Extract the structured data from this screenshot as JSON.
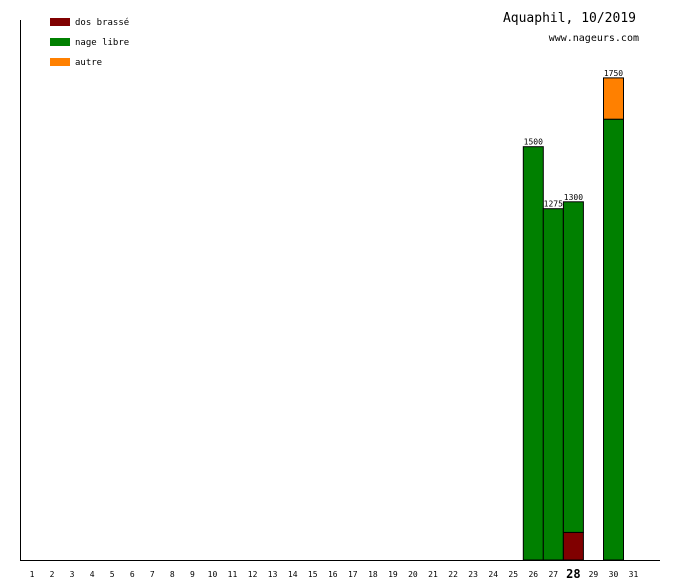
{
  "header": {
    "title": "Aquaphil, 10/2019",
    "url": "www.nageurs.com"
  },
  "legend": [
    {
      "label": "dos brassé",
      "color": "#800000"
    },
    {
      "label": "nage libre",
      "color": "#008000"
    },
    {
      "label": "autre",
      "color": "#ff8000"
    }
  ],
  "chart_data": {
    "type": "bar",
    "stacked": true,
    "categories": [
      "1",
      "2",
      "3",
      "4",
      "5",
      "6",
      "7",
      "8",
      "9",
      "10",
      "11",
      "12",
      "13",
      "14",
      "15",
      "16",
      "17",
      "18",
      "19",
      "20",
      "21",
      "22",
      "23",
      "24",
      "25",
      "26",
      "27",
      "28",
      "29",
      "30",
      "31"
    ],
    "highlight_category": "28",
    "series": [
      {
        "name": "dos brassé",
        "color": "#800000",
        "values": [
          0,
          0,
          0,
          0,
          0,
          0,
          0,
          0,
          0,
          0,
          0,
          0,
          0,
          0,
          0,
          0,
          0,
          0,
          0,
          0,
          0,
          0,
          0,
          0,
          0,
          0,
          0,
          100,
          0,
          0,
          0
        ]
      },
      {
        "name": "nage libre",
        "color": "#008000",
        "values": [
          0,
          0,
          0,
          0,
          0,
          0,
          0,
          0,
          0,
          0,
          0,
          0,
          0,
          0,
          0,
          0,
          0,
          0,
          0,
          0,
          0,
          0,
          0,
          0,
          0,
          1500,
          1275,
          1200,
          0,
          1600,
          0
        ]
      },
      {
        "name": "autre",
        "color": "#ff8000",
        "values": [
          0,
          0,
          0,
          0,
          0,
          0,
          0,
          0,
          0,
          0,
          0,
          0,
          0,
          0,
          0,
          0,
          0,
          0,
          0,
          0,
          0,
          0,
          0,
          0,
          0,
          0,
          0,
          0,
          0,
          150,
          0
        ]
      }
    ],
    "totals": [
      0,
      0,
      0,
      0,
      0,
      0,
      0,
      0,
      0,
      0,
      0,
      0,
      0,
      0,
      0,
      0,
      0,
      0,
      0,
      0,
      0,
      0,
      0,
      0,
      0,
      1500,
      1275,
      1300,
      0,
      1750,
      0
    ],
    "ylim": [
      0,
      1960
    ],
    "grid": false,
    "legend_position": "top-left"
  }
}
